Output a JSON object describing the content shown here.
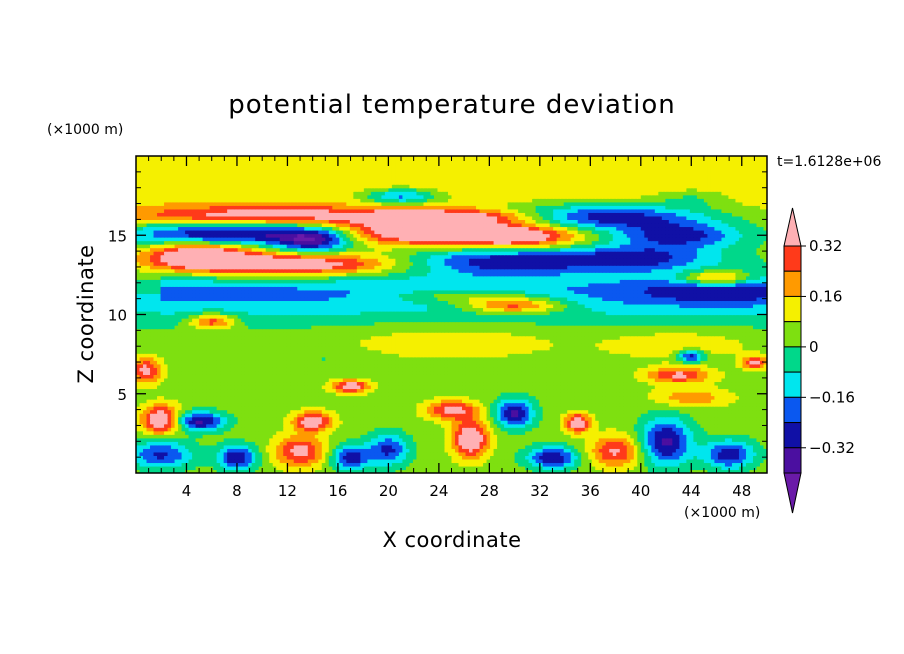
{
  "chart_data": {
    "type": "heatmap",
    "title": "potential temperature deviation",
    "xlabel": "X coordinate",
    "ylabel": "Z coordinate",
    "x_unit": "(×1000 m)",
    "y_unit": "(×1000 m)",
    "time_label": "t=1.6128e+06",
    "xlim": [
      0,
      50
    ],
    "ylim": [
      0,
      20
    ],
    "x_ticks": [
      4,
      8,
      12,
      16,
      20,
      24,
      28,
      32,
      36,
      40,
      44,
      48
    ],
    "y_ticks": [
      5,
      10,
      15
    ],
    "colorbar": {
      "levels": [
        -0.4,
        -0.32,
        -0.24,
        -0.16,
        -0.08,
        0,
        0.08,
        0.16,
        0.24,
        0.32,
        0.4
      ],
      "tick_values": [
        0.32,
        0.16,
        0,
        -0.16,
        -0.32
      ],
      "tick_labels": [
        "0.32",
        "0.16",
        "0",
        "−0.16",
        "−0.32"
      ],
      "colors": [
        "#6a1aa8",
        "#4b0fa0",
        "#1010a6",
        "#0a58f0",
        "#00e6ee",
        "#00d88a",
        "#7ee010",
        "#f5f000",
        "#ff9a00",
        "#ff3a1a",
        "#ffb0b4"
      ]
    },
    "background_value": 0.04,
    "features": [
      {
        "kind": "band",
        "x": [
          0,
          50
        ],
        "z": 10.8,
        "thick": 1.6,
        "value": -0.14
      },
      {
        "kind": "band",
        "x": [
          2,
          50
        ],
        "z": 11.6,
        "thick": 1.0,
        "value": -0.1
      },
      {
        "kind": "band",
        "x": [
          0,
          50
        ],
        "z": 17.4,
        "thick": 1.6,
        "value": 0.05
      },
      {
        "kind": "band",
        "x": [
          0,
          50
        ],
        "z": 18.6,
        "thick": 1.6,
        "value": 0.07
      },
      {
        "kind": "blob",
        "x": 10,
        "z": 16.3,
        "rx": 11,
        "rz": 0.6,
        "value": 0.3
      },
      {
        "kind": "blob",
        "x": 7,
        "z": 15.1,
        "rx": 8,
        "rz": 0.7,
        "value": -0.38
      },
      {
        "kind": "blob",
        "x": 14,
        "z": 14.7,
        "rx": 3,
        "rz": 0.8,
        "value": -0.36
      },
      {
        "kind": "blob",
        "x": 12,
        "z": 13.2,
        "rx": 9,
        "rz": 0.7,
        "value": 0.42
      },
      {
        "kind": "blob",
        "x": 5,
        "z": 13.8,
        "rx": 4,
        "rz": 0.8,
        "value": 0.4
      },
      {
        "kind": "blob",
        "x": 22,
        "z": 15.3,
        "rx": 6,
        "rz": 0.9,
        "value": 0.42
      },
      {
        "kind": "blob",
        "x": 30,
        "z": 15.0,
        "rx": 5,
        "rz": 0.8,
        "value": 0.42
      },
      {
        "kind": "blob",
        "x": 26,
        "z": 16.2,
        "rx": 7,
        "rz": 0.5,
        "value": 0.28
      },
      {
        "kind": "blob",
        "x": 21,
        "z": 17.5,
        "rx": 3,
        "rz": 0.5,
        "value": -0.3
      },
      {
        "kind": "blob",
        "x": 29,
        "z": 13.4,
        "rx": 8,
        "rz": 0.9,
        "value": -0.34
      },
      {
        "kind": "blob",
        "x": 37,
        "z": 16.2,
        "rx": 8,
        "rz": 0.8,
        "value": -0.38
      },
      {
        "kind": "blob",
        "x": 43,
        "z": 15.0,
        "rx": 5,
        "rz": 0.8,
        "value": -0.32
      },
      {
        "kind": "blob",
        "x": 40,
        "z": 13.6,
        "rx": 6,
        "rz": 0.8,
        "value": -0.28
      },
      {
        "kind": "blob",
        "x": 46,
        "z": 12.3,
        "rx": 3,
        "rz": 0.5,
        "value": 0.38
      },
      {
        "kind": "blob",
        "x": 46,
        "z": 11.8,
        "rx": 6,
        "rz": 1.0,
        "value": -0.18
      },
      {
        "kind": "blob",
        "x": 44,
        "z": 17.4,
        "rx": 3,
        "rz": 0.6,
        "value": -0.12
      },
      {
        "kind": "blob",
        "x": 30,
        "z": 10.6,
        "rx": 4,
        "rz": 0.5,
        "value": 0.35
      },
      {
        "kind": "blob",
        "x": 26,
        "z": 11.2,
        "rx": 6,
        "rz": 0.5,
        "value": 0.2
      },
      {
        "kind": "blob",
        "x": 6,
        "z": 9.6,
        "rx": 1.8,
        "rz": 0.5,
        "value": 0.3
      },
      {
        "kind": "blob",
        "x": 25,
        "z": 8.4,
        "rx": 9,
        "rz": 1.2,
        "value": 0.1
      },
      {
        "kind": "blob",
        "x": 43,
        "z": 8.2,
        "rx": 6,
        "rz": 1.0,
        "value": 0.1
      },
      {
        "kind": "blob",
        "x": 15,
        "z": 7.2,
        "rx": 3,
        "rz": 0.6,
        "value": -0.05
      },
      {
        "kind": "blob",
        "x": 43,
        "z": 6.2,
        "rx": 2.5,
        "rz": 0.5,
        "value": 0.3
      },
      {
        "kind": "blob",
        "x": 44,
        "z": 7.4,
        "rx": 1,
        "rz": 0.4,
        "value": -0.35
      },
      {
        "kind": "blob",
        "x": 49,
        "z": 7.0,
        "rx": 1,
        "rz": 0.4,
        "value": 0.32
      },
      {
        "kind": "blob",
        "x": 0.8,
        "z": 6.5,
        "rx": 1.2,
        "rz": 0.8,
        "value": 0.32
      },
      {
        "kind": "blob",
        "x": 17,
        "z": 5.5,
        "rx": 1.5,
        "rz": 0.4,
        "value": 0.36
      },
      {
        "kind": "blob",
        "x": 25,
        "z": 4.0,
        "rx": 2,
        "rz": 0.6,
        "value": 0.32
      },
      {
        "kind": "blob",
        "x": 44,
        "z": 4.8,
        "rx": 3,
        "rz": 0.6,
        "value": 0.18
      },
      {
        "kind": "blob",
        "x": 2,
        "z": 3.4,
        "rx": 1.5,
        "rz": 0.9,
        "value": 0.42
      },
      {
        "kind": "blob",
        "x": 5,
        "z": 3.3,
        "rx": 2,
        "rz": 0.6,
        "value": -0.38
      },
      {
        "kind": "blob",
        "x": 14,
        "z": 3.3,
        "rx": 1.5,
        "rz": 0.6,
        "value": 0.38
      },
      {
        "kind": "blob",
        "x": 26.5,
        "z": 2.2,
        "rx": 1.4,
        "rz": 1.2,
        "value": 0.42
      },
      {
        "kind": "blob",
        "x": 30,
        "z": 3.8,
        "rx": 1.5,
        "rz": 0.9,
        "value": -0.38
      },
      {
        "kind": "blob",
        "x": 35,
        "z": 3.2,
        "rx": 1.0,
        "rz": 0.6,
        "value": 0.38
      },
      {
        "kind": "blob",
        "x": 42,
        "z": 2.0,
        "rx": 2,
        "rz": 1.5,
        "value": -0.38
      },
      {
        "kind": "blob",
        "x": 2,
        "z": 1.2,
        "rx": 2.5,
        "rz": 0.9,
        "value": -0.3
      },
      {
        "kind": "blob",
        "x": 8,
        "z": 1.0,
        "rx": 1.5,
        "rz": 0.8,
        "value": -0.36
      },
      {
        "kind": "blob",
        "x": 13,
        "z": 1.4,
        "rx": 2,
        "rz": 1.0,
        "value": 0.32
      },
      {
        "kind": "blob",
        "x": 17,
        "z": 1.0,
        "rx": 1.5,
        "rz": 0.8,
        "value": -0.34
      },
      {
        "kind": "blob",
        "x": 20,
        "z": 1.5,
        "rx": 1.6,
        "rz": 1.0,
        "value": -0.3
      },
      {
        "kind": "blob",
        "x": 33,
        "z": 1.0,
        "rx": 2,
        "rz": 0.7,
        "value": -0.36
      },
      {
        "kind": "blob",
        "x": 38,
        "z": 1.4,
        "rx": 2,
        "rz": 1.0,
        "value": 0.3
      },
      {
        "kind": "blob",
        "x": 47,
        "z": 1.2,
        "rx": 2,
        "rz": 0.9,
        "value": -0.34
      }
    ]
  }
}
